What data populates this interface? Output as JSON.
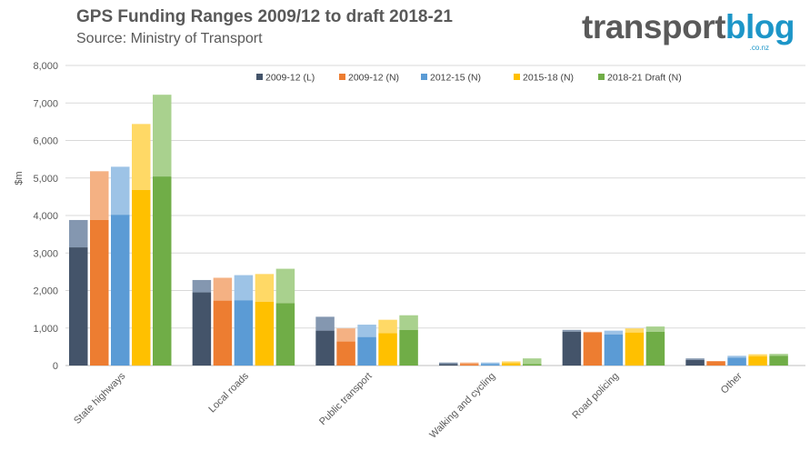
{
  "header": {
    "title": "GPS Funding Ranges 2009/12 to draft 2018-21",
    "subtitle": "Source: Ministry of Transport"
  },
  "logo": {
    "part1": "transport",
    "part2": "blog",
    "tld": ".co.nz"
  },
  "chart_data": {
    "type": "bar",
    "ylabel": "$m",
    "ylim": [
      0,
      8000
    ],
    "yticks": [
      "0",
      "1,000",
      "2,000",
      "3,000",
      "4,000",
      "5,000",
      "6,000",
      "7,000",
      "8,000"
    ],
    "ytick_values": [
      0,
      1000,
      2000,
      3000,
      4000,
      5000,
      6000,
      7000,
      8000
    ],
    "grid": true,
    "legend_position": "top",
    "categories": [
      "State highways",
      "Local roads",
      "Public transport",
      "Walking and cycling",
      "Road policing",
      "Other"
    ],
    "series": [
      {
        "name": "2009-12 (L)",
        "color": "#44546a",
        "light_color": "#8497b0",
        "low": [
          3150,
          1950,
          930,
          40,
          900,
          150
        ],
        "high": [
          3880,
          2280,
          1300,
          80,
          950,
          190
        ]
      },
      {
        "name": "2009-12 (N)",
        "color": "#ed7d31",
        "light_color": "#f4b183",
        "low": [
          3880,
          1730,
          640,
          40,
          880,
          110
        ],
        "high": [
          5180,
          2340,
          990,
          80,
          900,
          120
        ]
      },
      {
        "name": "2012-15 (N)",
        "color": "#5b9bd5",
        "light_color": "#9dc3e6",
        "low": [
          4020,
          1740,
          760,
          40,
          830,
          210
        ],
        "high": [
          5300,
          2410,
          1090,
          80,
          930,
          260
        ]
      },
      {
        "name": "2015-18 (N)",
        "color": "#ffc000",
        "light_color": "#ffd966",
        "low": [
          4680,
          1700,
          860,
          60,
          880,
          250
        ],
        "high": [
          6440,
          2440,
          1220,
          110,
          990,
          300
        ]
      },
      {
        "name": "2018-21 Draft (N)",
        "color": "#70ad47",
        "light_color": "#a9d18e",
        "low": [
          5040,
          1660,
          950,
          40,
          900,
          260
        ],
        "high": [
          7220,
          2580,
          1340,
          190,
          1040,
          310
        ]
      }
    ]
  }
}
